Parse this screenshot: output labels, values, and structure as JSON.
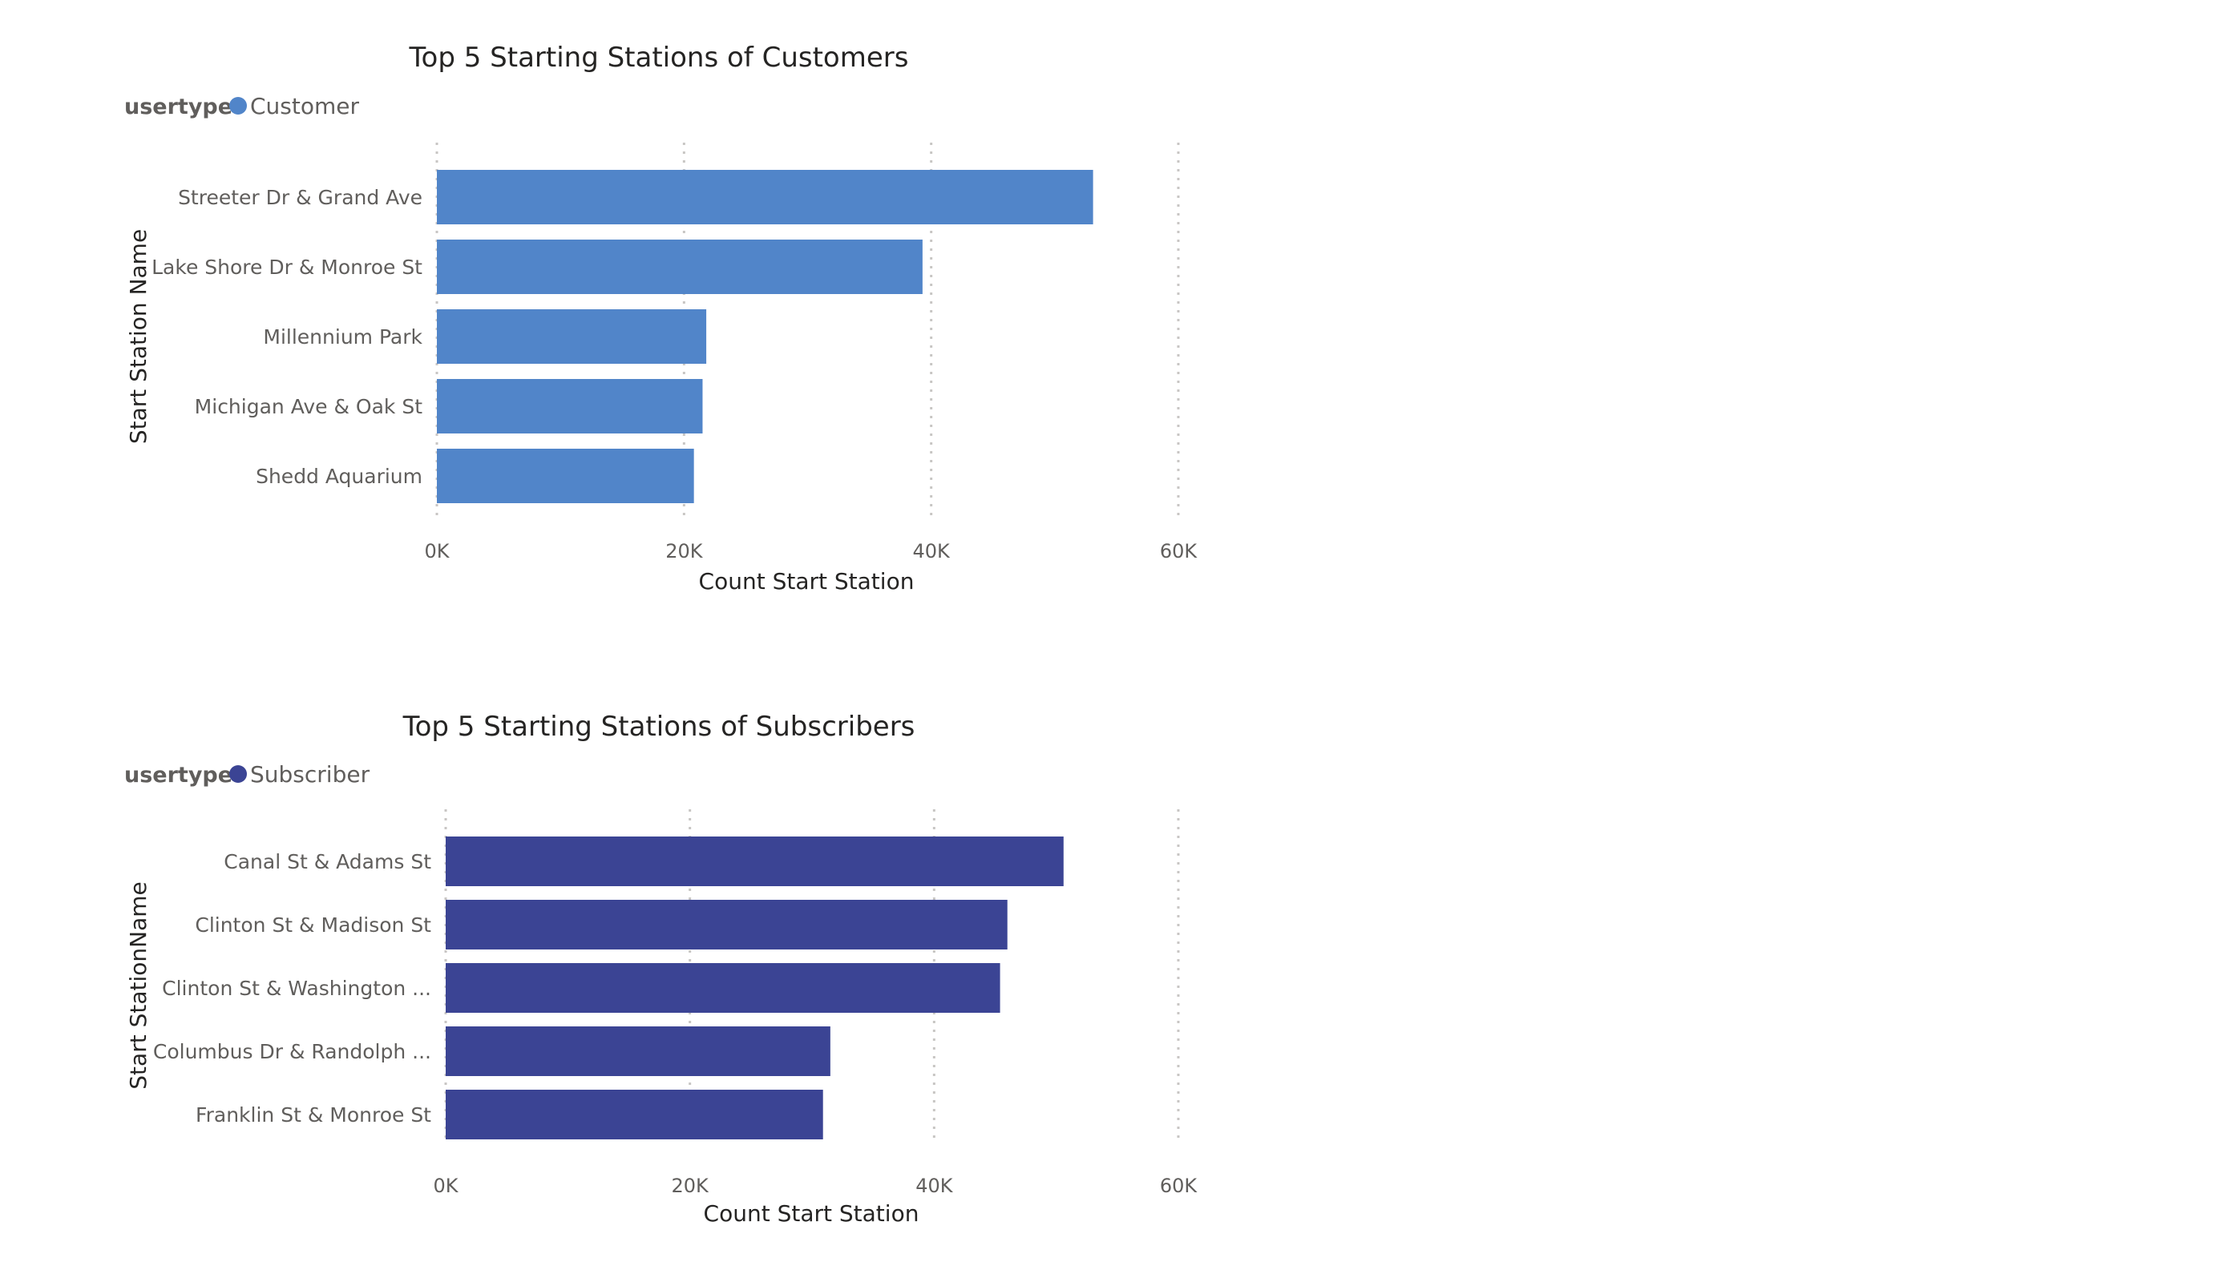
{
  "chart_data": [
    {
      "type": "bar",
      "orientation": "horizontal",
      "title": "Top 5 Starting Stations of Customers",
      "legend_title": "usertype",
      "legend_label": "Customer",
      "color": "#5185c9",
      "categories": [
        "Streeter Dr & Grand Ave",
        "Lake Shore Dr & Monroe St",
        "Millennium Park",
        "Michigan Ave & Oak St",
        "Shedd Aquarium"
      ],
      "series": [
        {
          "name": "Customer",
          "values": [
            53100,
            39300,
            21800,
            21500,
            20800
          ]
        }
      ],
      "xlabel": "Count Start Station",
      "ylabel": "Start Station Name",
      "xlim": [
        0,
        60000
      ],
      "ticks": [
        "0K",
        "20K",
        "40K",
        "60K"
      ],
      "grid": true,
      "legend_position": "top-left"
    },
    {
      "type": "bar",
      "orientation": "horizontal",
      "title": "Top 5 Starting Stations of Subscribers",
      "legend_title": "usertype",
      "legend_label": "Subscriber",
      "color": "#3b4494",
      "categories": [
        "Canal St & Adams St",
        "Clinton St & Madison St",
        "Clinton St & Washington ...",
        "Columbus Dr & Randolph ...",
        "Franklin St & Monroe St"
      ],
      "series": [
        {
          "name": "Subscriber",
          "values": [
            50600,
            46000,
            45400,
            31500,
            30900
          ]
        }
      ],
      "xlabel": "Count Start Station",
      "ylabel": "Start StationName",
      "xlim": [
        0,
        60000
      ],
      "ticks": [
        "0K",
        "20K",
        "40K",
        "60K"
      ],
      "grid": true,
      "legend_position": "top-left"
    }
  ]
}
